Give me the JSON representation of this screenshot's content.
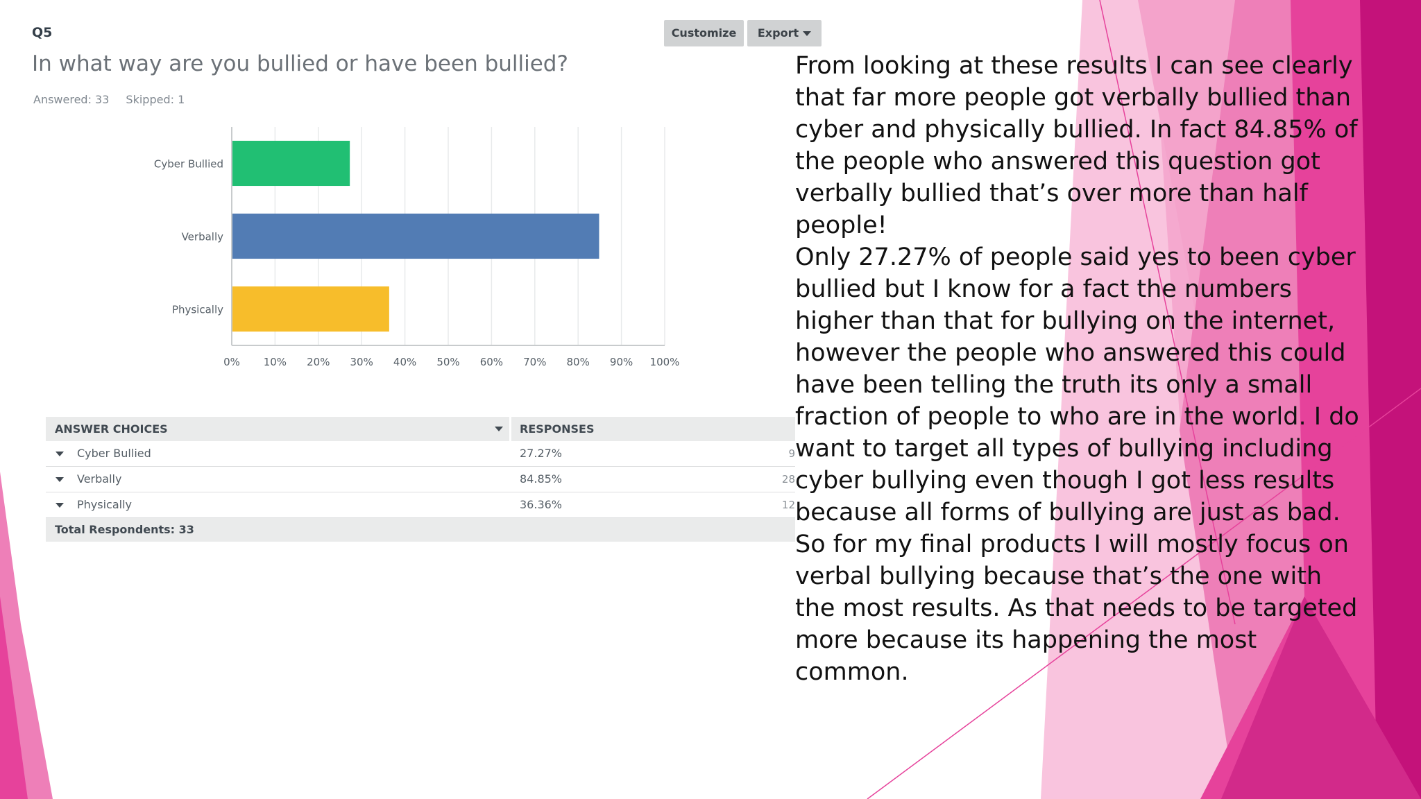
{
  "question": {
    "number": "Q5",
    "title": "In what way are you bullied or have been bullied?",
    "answered": "Answered: 33",
    "skipped": "Skipped: 1"
  },
  "toolbar": {
    "customize_label": "Customize",
    "export_label": "Export"
  },
  "chart_data": {
    "type": "bar",
    "orientation": "horizontal",
    "categories": [
      "Cyber Bullied",
      "Verbally",
      "Physically"
    ],
    "values": [
      27.27,
      84.85,
      36.36
    ],
    "colors": [
      "#21bf73",
      "#527cb4",
      "#f7bd2b"
    ],
    "xlim": [
      0,
      100
    ],
    "xticks": [
      "0%",
      "10%",
      "20%",
      "30%",
      "40%",
      "50%",
      "60%",
      "70%",
      "80%",
      "90%",
      "100%"
    ],
    "grid": true
  },
  "table": {
    "header_choices": "ANSWER CHOICES",
    "header_responses": "RESPONSES",
    "rows": [
      {
        "label": "Cyber Bullied",
        "percent": "27.27%",
        "count": "9"
      },
      {
        "label": "Verbally",
        "percent": "84.85%",
        "count": "28"
      },
      {
        "label": "Physically",
        "percent": "36.36%",
        "count": "12"
      }
    ],
    "total": "Total Respondents: 33"
  },
  "commentary": {
    "paragraph1": "From looking at these results I can see clearly that far more people got verbally bullied than cyber and physically bullied. In fact 84.85% of the people who answered this question got verbally bullied that’s over more than half people!",
    "paragraph2": "Only 27.27% of people said yes to been cyber bullied but I know for a fact the numbers higher than that for bullying on the internet, however the people who answered this could have been telling the truth its only a small fraction of people to who are in the world. I do want to target all types of bullying including cyber bullying even though I got less results because all forms of bullying are just as bad. So for my final products I will mostly focus on verbal bullying because that’s the one with the most results. As that needs to be targeted more because its happening the most common."
  },
  "theme": {
    "accent_pink": "#e6429b",
    "accent_magenta": "#c4127a",
    "light_pink": "#f7b8d8"
  }
}
